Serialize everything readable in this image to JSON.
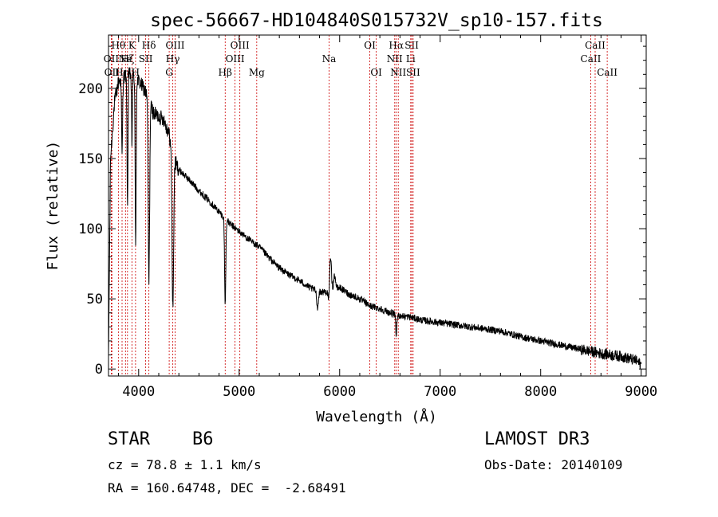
{
  "chart_data": {
    "type": "line",
    "title": "spec-56667-HD104840S015732V_sp10-157.fits",
    "xlabel": "Wavelength (Å)",
    "ylabel": "Flux (relative)",
    "xlim": [
      3700,
      9050
    ],
    "ylim": [
      -5,
      238
    ],
    "xticks": [
      4000,
      5000,
      6000,
      7000,
      8000,
      9000
    ],
    "xtick_labels": [
      "4000",
      "5000",
      "6000",
      "7000",
      "8000",
      "9000"
    ],
    "yticks": [
      0,
      50,
      100,
      150,
      200
    ],
    "ytick_labels": [
      "0",
      "50",
      "100",
      "150",
      "200"
    ],
    "series": [
      {
        "name": "spectrum",
        "continuum": [
          [
            3700,
            5
          ],
          [
            3720,
            150
          ],
          [
            3760,
            190
          ],
          [
            3800,
            205
          ],
          [
            3850,
            208
          ],
          [
            3900,
            210
          ],
          [
            3950,
            210
          ],
          [
            4000,
            205
          ],
          [
            4050,
            200
          ],
          [
            4100,
            192
          ],
          [
            4150,
            182
          ],
          [
            4200,
            180
          ],
          [
            4250,
            178
          ],
          [
            4300,
            168
          ],
          [
            4350,
            150
          ],
          [
            4400,
            142
          ],
          [
            4500,
            135
          ],
          [
            4600,
            127
          ],
          [
            4700,
            120
          ],
          [
            4800,
            112
          ],
          [
            4900,
            104
          ],
          [
            5000,
            98
          ],
          [
            5100,
            92
          ],
          [
            5200,
            87
          ],
          [
            5300,
            79
          ],
          [
            5400,
            72
          ],
          [
            5500,
            67
          ],
          [
            5600,
            63
          ],
          [
            5700,
            58
          ],
          [
            5800,
            55
          ],
          [
            5900,
            55
          ],
          [
            6000,
            58
          ],
          [
            6100,
            53
          ],
          [
            6200,
            50
          ],
          [
            6300,
            45
          ],
          [
            6400,
            43
          ],
          [
            6500,
            40
          ],
          [
            6600,
            38
          ],
          [
            6700,
            37
          ],
          [
            6800,
            35
          ],
          [
            7000,
            33
          ],
          [
            7200,
            31
          ],
          [
            7400,
            29
          ],
          [
            7600,
            27
          ],
          [
            7800,
            23
          ],
          [
            8000,
            20
          ],
          [
            8200,
            17
          ],
          [
            8400,
            14
          ],
          [
            8600,
            11
          ],
          [
            8800,
            9
          ],
          [
            8950,
            6
          ],
          [
            9000,
            3
          ]
        ],
        "absorption_lines": [
          [
            3835,
            55,
            5
          ],
          [
            3889,
            90,
            5
          ],
          [
            3933,
            50,
            4
          ],
          [
            3970,
            120,
            5
          ],
          [
            4102,
            130,
            7
          ],
          [
            4340,
            110,
            8
          ],
          [
            4861,
            60,
            6
          ],
          [
            5780,
            12,
            8
          ],
          [
            5890,
            8,
            5
          ],
          [
            6563,
            14,
            6
          ]
        ],
        "emission_lines": [
          [
            5910,
            25,
            8
          ],
          [
            5950,
            10,
            10
          ]
        ],
        "noise_amplitude": 2.5
      }
    ],
    "line_markers": [
      {
        "wavelength": 3727,
        "label": "OII",
        "row": 2
      },
      {
        "wavelength": 3734,
        "label": "OII",
        "row": 3
      },
      {
        "wavelength": 3798,
        "label": "Hθ",
        "row": 1
      },
      {
        "wavelength": 3835,
        "label": "Hη",
        "row": 3
      },
      {
        "wavelength": 3869,
        "label": "Ne",
        "row": 2
      },
      {
        "wavelength": 3889,
        "label": "Hζ",
        "row": 2
      },
      {
        "wavelength": 3933,
        "label": "K",
        "row": 1
      },
      {
        "wavelength": 3969,
        "label": "H",
        "row": 3
      },
      {
        "wavelength": 4070,
        "label": "SII",
        "row": 2
      },
      {
        "wavelength": 4102,
        "label": "Hδ",
        "row": 1
      },
      {
        "wavelength": 4304,
        "label": "G",
        "row": 3
      },
      {
        "wavelength": 4340,
        "label": "Hγ",
        "row": 2
      },
      {
        "wavelength": 4363,
        "label": "OIII",
        "row": 1
      },
      {
        "wavelength": 4861,
        "label": "Hβ",
        "row": 3
      },
      {
        "wavelength": 4959,
        "label": "OIII",
        "row": 2
      },
      {
        "wavelength": 5007,
        "label": "OIII",
        "row": 1
      },
      {
        "wavelength": 5175,
        "label": "Mg",
        "row": 3
      },
      {
        "wavelength": 5894,
        "label": "Na",
        "row": 2
      },
      {
        "wavelength": 6300,
        "label": "OI",
        "row": 1
      },
      {
        "wavelength": 6364,
        "label": "OI",
        "row": 3
      },
      {
        "wavelength": 6548,
        "label": "NII",
        "row": 2
      },
      {
        "wavelength": 6563,
        "label": "Hα",
        "row": 1
      },
      {
        "wavelength": 6583,
        "label": "NII",
        "row": 3
      },
      {
        "wavelength": 6707,
        "label": "Li",
        "row": 2
      },
      {
        "wavelength": 6717,
        "label": "SII",
        "row": 1
      },
      {
        "wavelength": 6731,
        "label": "SII",
        "row": 3
      },
      {
        "wavelength": 8498,
        "label": "CaII",
        "row": 2
      },
      {
        "wavelength": 8542,
        "label": "CaII",
        "row": 1
      },
      {
        "wavelength": 8662,
        "label": "CaII",
        "row": 3
      }
    ]
  },
  "info": {
    "class_label": "STAR",
    "subclass": "B6",
    "survey": "LAMOST DR3",
    "cz_text": "cz = 78.8 ± 1.1 km/s",
    "obs_date_text": "Obs-Date: 20140109",
    "radec_text": "RA = 160.64748, DEC =  -2.68491"
  },
  "colors": {
    "axis": "#000000",
    "spectrum": "#000000",
    "marker_line": "#cc0000"
  }
}
